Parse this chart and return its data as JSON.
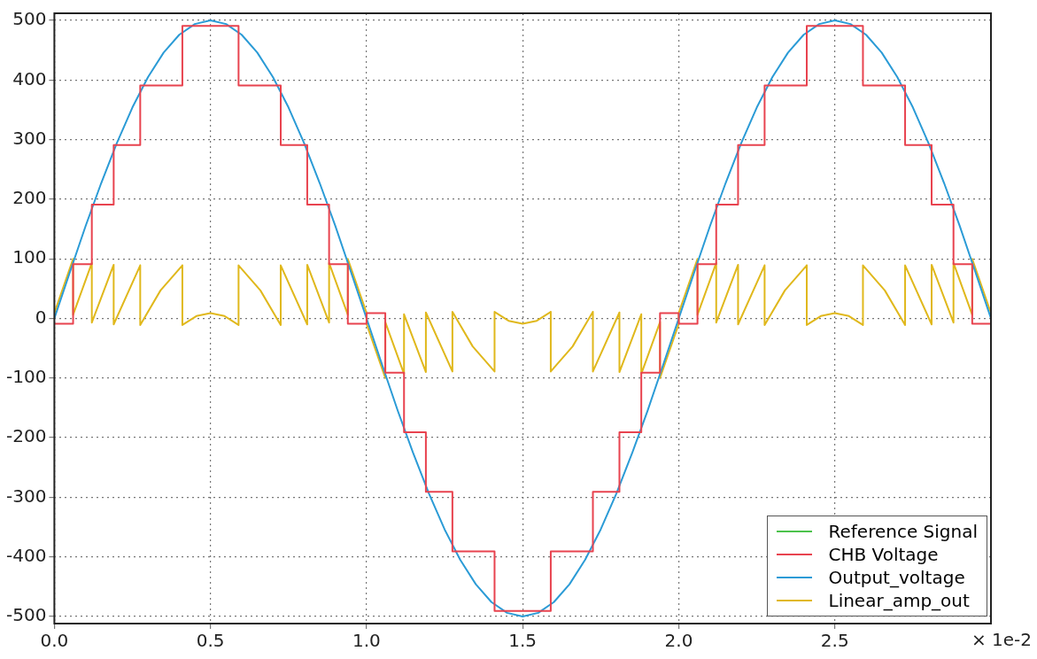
{
  "chart_data": {
    "type": "line",
    "annotations": [
      "× 1e-2"
    ],
    "x": [
      0,
      0.05,
      0.1,
      0.15,
      0.2,
      0.25,
      0.3,
      0.35,
      0.4,
      0.45,
      0.5,
      0.55,
      0.6,
      0.65,
      0.7,
      0.75,
      0.8,
      0.85,
      0.9,
      0.95,
      1,
      1.05,
      1.1,
      1.15,
      1.2,
      1.25,
      1.3,
      1.35,
      1.4,
      1.45,
      1.5,
      1.55,
      1.6,
      1.65,
      1.7,
      1.75,
      1.8,
      1.85,
      1.9,
      1.95,
      2,
      2.05,
      2.1,
      2.15,
      2.2,
      2.25,
      2.3,
      2.35,
      2.4,
      2.45,
      2.5,
      2.55,
      2.6,
      2.65,
      2.7,
      2.75,
      2.8,
      2.85,
      2.9,
      2.95,
      3
    ],
    "series": [
      {
        "name": "Reference Signal",
        "color": "#4cc24c",
        "values": [
          null,
          null,
          null,
          null,
          null,
          null,
          null,
          null,
          null,
          null,
          null,
          null,
          null,
          null,
          null,
          null,
          null,
          null,
          null,
          null,
          null,
          null,
          null,
          null,
          null,
          null,
          null,
          null,
          null,
          null,
          null,
          null,
          null,
          null,
          null,
          null,
          null,
          null,
          null,
          null,
          null,
          null,
          null,
          null,
          null,
          null,
          null,
          null,
          null,
          null,
          null,
          null,
          null,
          null,
          null,
          null,
          null,
          null,
          null,
          null,
          null
        ]
      },
      {
        "name": "CHB Voltage",
        "color": "#e8434f",
        "type": "step",
        "x": [
          0,
          0.06,
          0.12,
          0.19,
          0.275,
          0.41,
          0.59,
          0.725,
          0.81,
          0.88,
          0.94,
          1,
          1.06,
          1.12,
          1.19,
          1.275,
          1.41,
          1.59,
          1.725,
          1.81,
          1.88,
          1.94,
          2,
          2.06,
          2.12,
          2.19,
          2.275,
          2.41,
          2.59,
          2.725,
          2.81,
          2.88,
          2.94,
          3
        ],
        "values": [
          -9,
          91,
          191,
          291,
          391,
          491,
          391,
          291,
          191,
          91,
          -9,
          9,
          -91,
          -191,
          -291,
          -391,
          -491,
          -391,
          -291,
          -191,
          -91,
          9,
          -9,
          91,
          191,
          291,
          391,
          491,
          391,
          291,
          191,
          91,
          -9,
          -9
        ]
      },
      {
        "name": "Output_voltage",
        "color": "#2b9bd6",
        "values": [
          0,
          78,
          155,
          227,
          294,
          354,
          405,
          446,
          476,
          494,
          500,
          494,
          476,
          446,
          405,
          354,
          294,
          227,
          155,
          78,
          0,
          -78,
          -155,
          -227,
          -294,
          -354,
          -405,
          -446,
          -476,
          -494,
          -500,
          -494,
          -476,
          -446,
          -405,
          -354,
          -294,
          -227,
          -155,
          -78,
          0,
          78,
          155,
          227,
          294,
          354,
          405,
          446,
          476,
          494,
          500,
          494,
          476,
          446,
          405,
          354,
          294,
          227,
          155,
          78,
          0
        ]
      },
      {
        "name": "Linear_amp_out",
        "color": "#e0b81c",
        "x": [
          0,
          0.06,
          0.06,
          0.12,
          0.12,
          0.19,
          0.19,
          0.275,
          0.275,
          0.34,
          0.41,
          0.41,
          0.455,
          0.5,
          0.545,
          0.59,
          0.59,
          0.66,
          0.725,
          0.725,
          0.81,
          0.81,
          0.88,
          0.88,
          0.94,
          0.94,
          1,
          1,
          1.06,
          1.06,
          1.12,
          1.12,
          1.19,
          1.19,
          1.275,
          1.275,
          1.34,
          1.41,
          1.41,
          1.455,
          1.5,
          1.545,
          1.59,
          1.59,
          1.66,
          1.725,
          1.725,
          1.81,
          1.81,
          1.88,
          1.88,
          1.94,
          1.94,
          2,
          2,
          2.06,
          2.06,
          2.12,
          2.12,
          2.19,
          2.19,
          2.275,
          2.275,
          2.34,
          2.41,
          2.41,
          2.455,
          2.5,
          2.545,
          2.59,
          2.59,
          2.66,
          2.725,
          2.725,
          2.81,
          2.81,
          2.88,
          2.88,
          2.94,
          2.94,
          3
        ],
        "values": [
          9,
          100,
          6,
          93,
          -7,
          90,
          -10,
          89,
          -11,
          47,
          89,
          -11,
          4,
          9,
          4,
          -11,
          89,
          47,
          -11,
          89,
          -10,
          90,
          -7,
          93,
          6,
          100,
          9,
          -9,
          -100,
          -6,
          -93,
          7,
          -90,
          10,
          -89,
          11,
          -47,
          -89,
          11,
          -4,
          -9,
          -4,
          11,
          -89,
          -47,
          11,
          -89,
          10,
          -90,
          7,
          -93,
          -6,
          -100,
          -9,
          9,
          100,
          6,
          93,
          -7,
          90,
          -10,
          89,
          -11,
          47,
          89,
          -11,
          4,
          9,
          4,
          -11,
          89,
          47,
          -11,
          89,
          -10,
          90,
          -7,
          93,
          6,
          100,
          9
        ]
      }
    ],
    "xlim": [
      0,
      3
    ],
    "xticks": [
      {
        "value": 0,
        "label": "0.0"
      },
      {
        "value": 0.5,
        "label": "0.5"
      },
      {
        "value": 1,
        "label": "1.0"
      },
      {
        "value": 1.5,
        "label": "1.5"
      },
      {
        "value": 2,
        "label": "2.0"
      },
      {
        "value": 2.5,
        "label": "2.5"
      }
    ],
    "ylim": [
      -512,
      512
    ],
    "yticks": [
      -500,
      -400,
      -300,
      -200,
      -100,
      0,
      100,
      200,
      300,
      400,
      500
    ],
    "grid": true,
    "legend": "bottom right",
    "marker": "none",
    "line_style": "solid"
  }
}
